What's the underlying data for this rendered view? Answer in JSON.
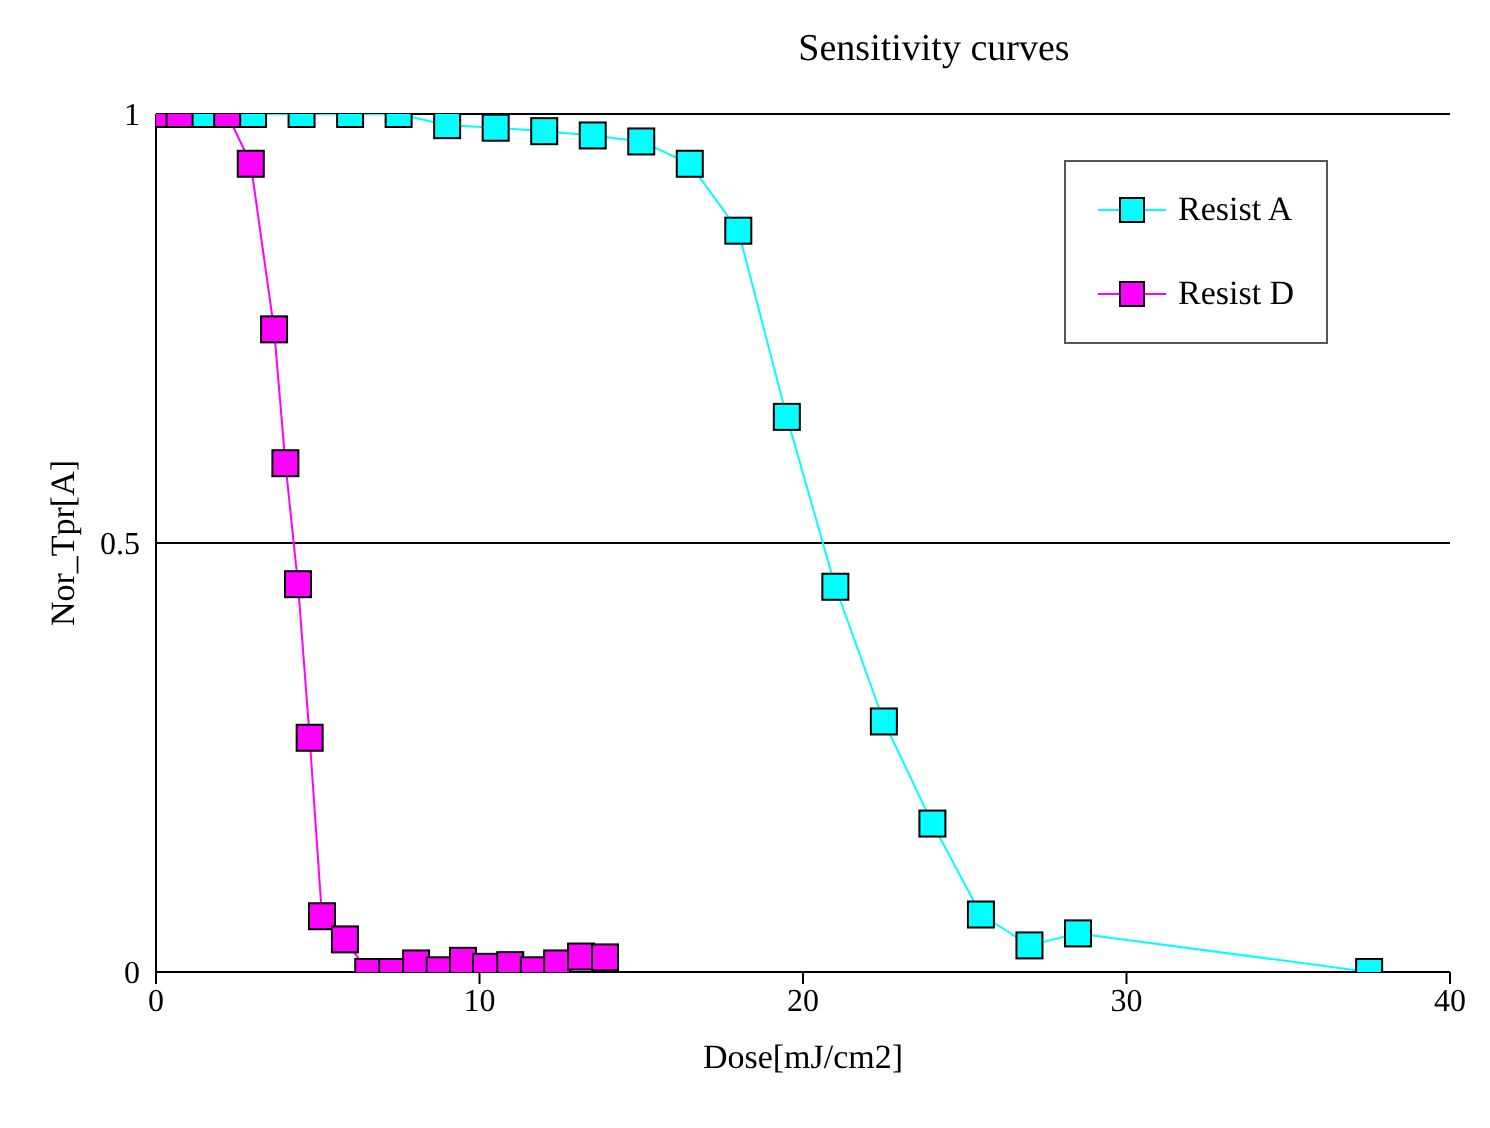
{
  "chart_data": {
    "type": "line",
    "title": "Sensitivity curves",
    "xlabel": "Dose[mJ/cm2]",
    "ylabel": "Nor_Tpr[A]",
    "xlim": [
      0,
      40
    ],
    "xticks": [
      0,
      10,
      20,
      30,
      40
    ],
    "ylim": [
      0,
      1
    ],
    "yticks": [
      0,
      0.5,
      1
    ],
    "grid": "y",
    "legend": "top right",
    "marker": "square",
    "line_style": "solid",
    "series": [
      {
        "name": "Resist A",
        "color": "#00ffff",
        "x": [
          1.5,
          3,
          4.5,
          6,
          7.5,
          9,
          10.5,
          12,
          13.5,
          15,
          16.5,
          18,
          19.5,
          21,
          22.5,
          24,
          25.5,
          27,
          28.5,
          37.5
        ],
        "values": [
          1,
          1,
          1,
          1,
          1,
          0.987,
          0.984,
          0.98,
          0.975,
          0.968,
          0.942,
          0.864,
          0.647,
          0.449,
          0.292,
          0.173,
          0.067,
          0.031,
          0.045,
          0
        ]
      },
      {
        "name": "Resist D",
        "color": "#ff00ff",
        "x": [
          0,
          0.73,
          2.2,
          2.93,
          3.65,
          4.0,
          4.39,
          4.75,
          5.13,
          5.84,
          6.56,
          7.3,
          8.04,
          8.77,
          9.49,
          10.2,
          10.95,
          11.68,
          12.4,
          13.14,
          13.88
        ],
        "values": [
          1,
          1,
          1,
          0.942,
          0.749,
          0.593,
          0.452,
          0.273,
          0.065,
          0.038,
          0,
          0,
          0.01,
          0.002,
          0.013,
          0.006,
          0.008,
          0.002,
          0.01,
          0.018,
          0.017
        ]
      }
    ]
  }
}
